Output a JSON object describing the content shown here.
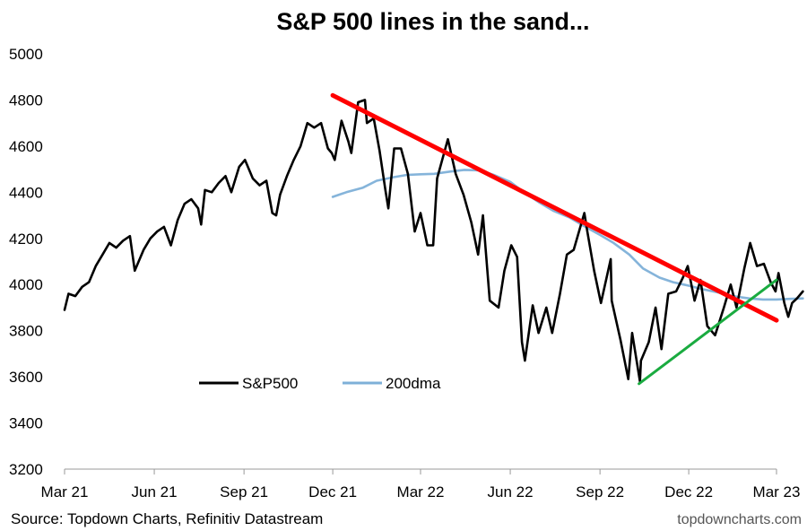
{
  "chart_data": {
    "type": "line",
    "title": "S&P 500 lines in the sand...",
    "xlabel": "",
    "ylabel": "",
    "ylim": [
      3200,
      5000
    ],
    "yticks": [
      3200,
      3400,
      3600,
      3800,
      4000,
      4200,
      4400,
      4600,
      4800,
      5000
    ],
    "xlim": [
      "2021-03-01",
      "2023-03-01"
    ],
    "xticks": [
      {
        "date": "2021-03-01",
        "label": "Mar 21"
      },
      {
        "date": "2021-06-01",
        "label": "Jun 21"
      },
      {
        "date": "2021-09-01",
        "label": "Sep 21"
      },
      {
        "date": "2021-12-01",
        "label": "Dec 21"
      },
      {
        "date": "2022-03-01",
        "label": "Mar 22"
      },
      {
        "date": "2022-06-01",
        "label": "Jun 22"
      },
      {
        "date": "2022-09-01",
        "label": "Sep 22"
      },
      {
        "date": "2022-12-01",
        "label": "Dec 22"
      },
      {
        "date": "2023-03-01",
        "label": "Mar 23"
      }
    ],
    "grid": false,
    "legend": "center-left",
    "series": [
      {
        "name": "S&P500",
        "color": "#000000",
        "points": [
          [
            "2021-03-01",
            3890
          ],
          [
            "2021-03-05",
            3960
          ],
          [
            "2021-03-12",
            3950
          ],
          [
            "2021-03-19",
            3990
          ],
          [
            "2021-03-26",
            4010
          ],
          [
            "2021-04-02",
            4080
          ],
          [
            "2021-04-09",
            4130
          ],
          [
            "2021-04-16",
            4180
          ],
          [
            "2021-04-23",
            4160
          ],
          [
            "2021-04-30",
            4190
          ],
          [
            "2021-05-07",
            4210
          ],
          [
            "2021-05-12",
            4060
          ],
          [
            "2021-05-21",
            4150
          ],
          [
            "2021-05-28",
            4200
          ],
          [
            "2021-06-04",
            4230
          ],
          [
            "2021-06-11",
            4250
          ],
          [
            "2021-06-18",
            4170
          ],
          [
            "2021-06-25",
            4280
          ],
          [
            "2021-07-02",
            4350
          ],
          [
            "2021-07-09",
            4370
          ],
          [
            "2021-07-16",
            4330
          ],
          [
            "2021-07-19",
            4260
          ],
          [
            "2021-07-23",
            4410
          ],
          [
            "2021-07-30",
            4400
          ],
          [
            "2021-08-06",
            4440
          ],
          [
            "2021-08-13",
            4470
          ],
          [
            "2021-08-19",
            4400
          ],
          [
            "2021-08-27",
            4510
          ],
          [
            "2021-09-02",
            4540
          ],
          [
            "2021-09-10",
            4460
          ],
          [
            "2021-09-17",
            4430
          ],
          [
            "2021-09-24",
            4450
          ],
          [
            "2021-09-30",
            4310
          ],
          [
            "2021-10-04",
            4300
          ],
          [
            "2021-10-08",
            4390
          ],
          [
            "2021-10-15",
            4470
          ],
          [
            "2021-10-22",
            4540
          ],
          [
            "2021-10-29",
            4600
          ],
          [
            "2021-11-05",
            4700
          ],
          [
            "2021-11-12",
            4680
          ],
          [
            "2021-11-19",
            4700
          ],
          [
            "2021-11-26",
            4590
          ],
          [
            "2021-11-30",
            4570
          ],
          [
            "2021-12-03",
            4540
          ],
          [
            "2021-12-10",
            4710
          ],
          [
            "2021-12-17",
            4620
          ],
          [
            "2021-12-20",
            4570
          ],
          [
            "2021-12-27",
            4790
          ],
          [
            "2022-01-03",
            4800
          ],
          [
            "2022-01-05",
            4700
          ],
          [
            "2022-01-12",
            4720
          ],
          [
            "2022-01-18",
            4580
          ],
          [
            "2022-01-24",
            4410
          ],
          [
            "2022-01-27",
            4330
          ],
          [
            "2022-02-02",
            4590
          ],
          [
            "2022-02-09",
            4590
          ],
          [
            "2022-02-16",
            4480
          ],
          [
            "2022-02-23",
            4230
          ],
          [
            "2022-03-01",
            4310
          ],
          [
            "2022-03-08",
            4170
          ],
          [
            "2022-03-14",
            4170
          ],
          [
            "2022-03-18",
            4460
          ],
          [
            "2022-03-29",
            4630
          ],
          [
            "2022-04-06",
            4480
          ],
          [
            "2022-04-14",
            4390
          ],
          [
            "2022-04-22",
            4270
          ],
          [
            "2022-04-29",
            4130
          ],
          [
            "2022-05-04",
            4300
          ],
          [
            "2022-05-11",
            3930
          ],
          [
            "2022-05-20",
            3900
          ],
          [
            "2022-05-26",
            4060
          ],
          [
            "2022-06-02",
            4170
          ],
          [
            "2022-06-08",
            4120
          ],
          [
            "2022-06-13",
            3750
          ],
          [
            "2022-06-16",
            3670
          ],
          [
            "2022-06-24",
            3910
          ],
          [
            "2022-06-30",
            3790
          ],
          [
            "2022-07-08",
            3900
          ],
          [
            "2022-07-14",
            3790
          ],
          [
            "2022-07-22",
            3960
          ],
          [
            "2022-07-29",
            4130
          ],
          [
            "2022-08-05",
            4150
          ],
          [
            "2022-08-16",
            4310
          ],
          [
            "2022-08-19",
            4230
          ],
          [
            "2022-08-26",
            4060
          ],
          [
            "2022-09-02",
            3920
          ],
          [
            "2022-09-12",
            4110
          ],
          [
            "2022-09-13",
            3930
          ],
          [
            "2022-09-22",
            3760
          ],
          [
            "2022-09-30",
            3590
          ],
          [
            "2022-10-04",
            3790
          ],
          [
            "2022-10-12",
            3580
          ],
          [
            "2022-10-13",
            3670
          ],
          [
            "2022-10-21",
            3750
          ],
          [
            "2022-10-28",
            3900
          ],
          [
            "2022-11-03",
            3720
          ],
          [
            "2022-11-10",
            3960
          ],
          [
            "2022-11-18",
            3970
          ],
          [
            "2022-11-25",
            4030
          ],
          [
            "2022-11-30",
            4080
          ],
          [
            "2022-12-07",
            3930
          ],
          [
            "2022-12-13",
            4020
          ],
          [
            "2022-12-20",
            3820
          ],
          [
            "2022-12-28",
            3780
          ],
          [
            "2023-01-06",
            3900
          ],
          [
            "2023-01-13",
            4000
          ],
          [
            "2023-01-19",
            3900
          ],
          [
            "2023-01-27",
            4070
          ],
          [
            "2023-02-02",
            4180
          ],
          [
            "2023-02-09",
            4080
          ],
          [
            "2023-02-16",
            4090
          ],
          [
            "2023-02-23",
            4010
          ],
          [
            "2023-02-28",
            3970
          ],
          [
            "2023-03-03",
            4050
          ],
          [
            "2023-03-09",
            3920
          ],
          [
            "2023-03-13",
            3860
          ],
          [
            "2023-03-17",
            3920
          ],
          [
            "2023-03-22",
            3940
          ],
          [
            "2023-03-28",
            3970
          ]
        ]
      },
      {
        "name": "200dma",
        "color": "#7eb0d8",
        "points": [
          [
            "2021-12-01",
            4380
          ],
          [
            "2021-12-15",
            4400
          ],
          [
            "2022-01-01",
            4420
          ],
          [
            "2022-01-15",
            4450
          ],
          [
            "2022-02-01",
            4465
          ],
          [
            "2022-02-15",
            4475
          ],
          [
            "2022-03-01",
            4478
          ],
          [
            "2022-03-15",
            4480
          ],
          [
            "2022-04-01",
            4490
          ],
          [
            "2022-04-15",
            4497
          ],
          [
            "2022-05-01",
            4495
          ],
          [
            "2022-05-15",
            4475
          ],
          [
            "2022-06-01",
            4445
          ],
          [
            "2022-06-15",
            4400
          ],
          [
            "2022-07-01",
            4355
          ],
          [
            "2022-07-15",
            4320
          ],
          [
            "2022-08-01",
            4290
          ],
          [
            "2022-08-15",
            4255
          ],
          [
            "2022-09-01",
            4215
          ],
          [
            "2022-09-15",
            4180
          ],
          [
            "2022-10-01",
            4130
          ],
          [
            "2022-10-15",
            4070
          ],
          [
            "2022-11-01",
            4030
          ],
          [
            "2022-11-15",
            4010
          ],
          [
            "2022-12-01",
            3995
          ],
          [
            "2022-12-15",
            3980
          ],
          [
            "2023-01-01",
            3965
          ],
          [
            "2023-01-15",
            3950
          ],
          [
            "2023-02-01",
            3940
          ],
          [
            "2023-02-15",
            3935
          ],
          [
            "2023-03-01",
            3935
          ],
          [
            "2023-03-15",
            3938
          ],
          [
            "2023-03-28",
            3940
          ]
        ]
      }
    ],
    "trendlines": [
      {
        "color": "#ff0000",
        "from": [
          "2021-12-01",
          4820
        ],
        "to": [
          "2023-03-01",
          3845
        ]
      },
      {
        "color": "#1aab40",
        "from": [
          "2022-10-11",
          3570
        ],
        "to": [
          "2023-03-01",
          4020
        ]
      }
    ]
  },
  "footer": {
    "source": "Source: Topdown Charts, Refinitiv Datastream",
    "brand": "topdowncharts.com"
  }
}
